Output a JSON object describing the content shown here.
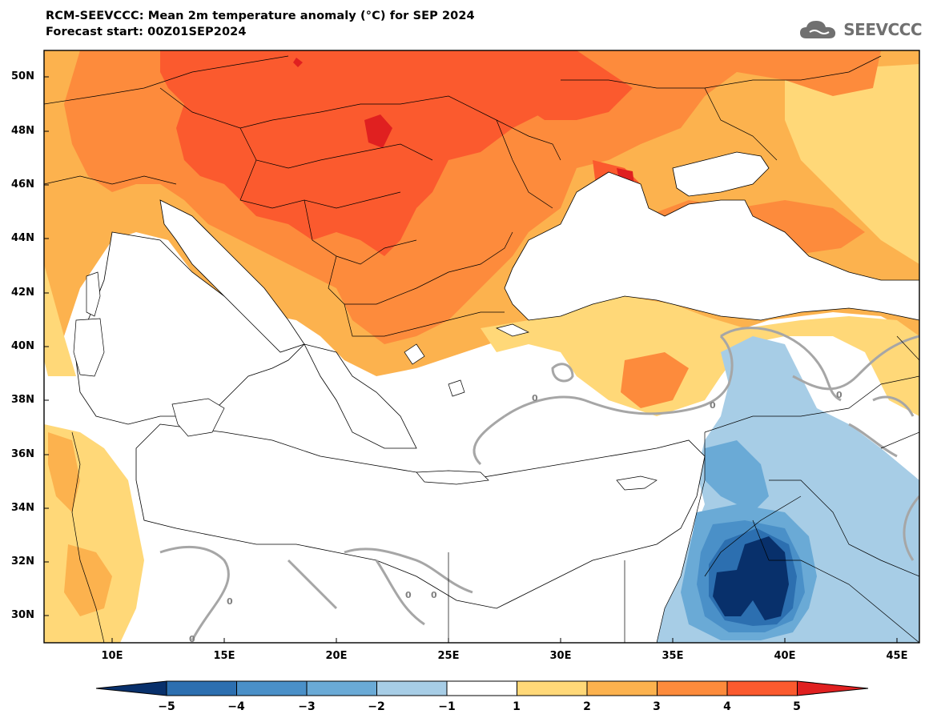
{
  "header": {
    "title": "RCM-SEEVCCC: Mean 2m temperature anomaly (°C) for SEP 2024",
    "subtitle": "Forecast start: 00Z01SEP2024"
  },
  "logo": {
    "text": "SEEVCCC",
    "icon": "cloud-logo-icon"
  },
  "map": {
    "lon_range": [
      7,
      45.7
    ],
    "lat_range": [
      29,
      51
    ],
    "lat_labels": [
      "50N",
      "48N",
      "46N",
      "44N",
      "42N",
      "40N",
      "38N",
      "36N",
      "34N",
      "32N",
      "30N"
    ],
    "lon_labels": [
      "10E",
      "15E",
      "20E",
      "25E",
      "30E",
      "35E",
      "40E",
      "45E"
    ],
    "contour_labels": [
      "0",
      "0",
      "0",
      "0",
      "0",
      "0",
      "0"
    ]
  },
  "colorbar": {
    "labels": [
      "−5",
      "−4",
      "−3",
      "−2",
      "−1",
      "1",
      "2",
      "3",
      "4",
      "5"
    ],
    "colors": [
      "#08306b",
      "#2c6fb0",
      "#4a90c8",
      "#6aaad6",
      "#a7cde6",
      "#ffffff",
      "#ffd878",
      "#fcb24e",
      "#fd8b3c",
      "#fb5a2e",
      "#e02020"
    ]
  }
}
